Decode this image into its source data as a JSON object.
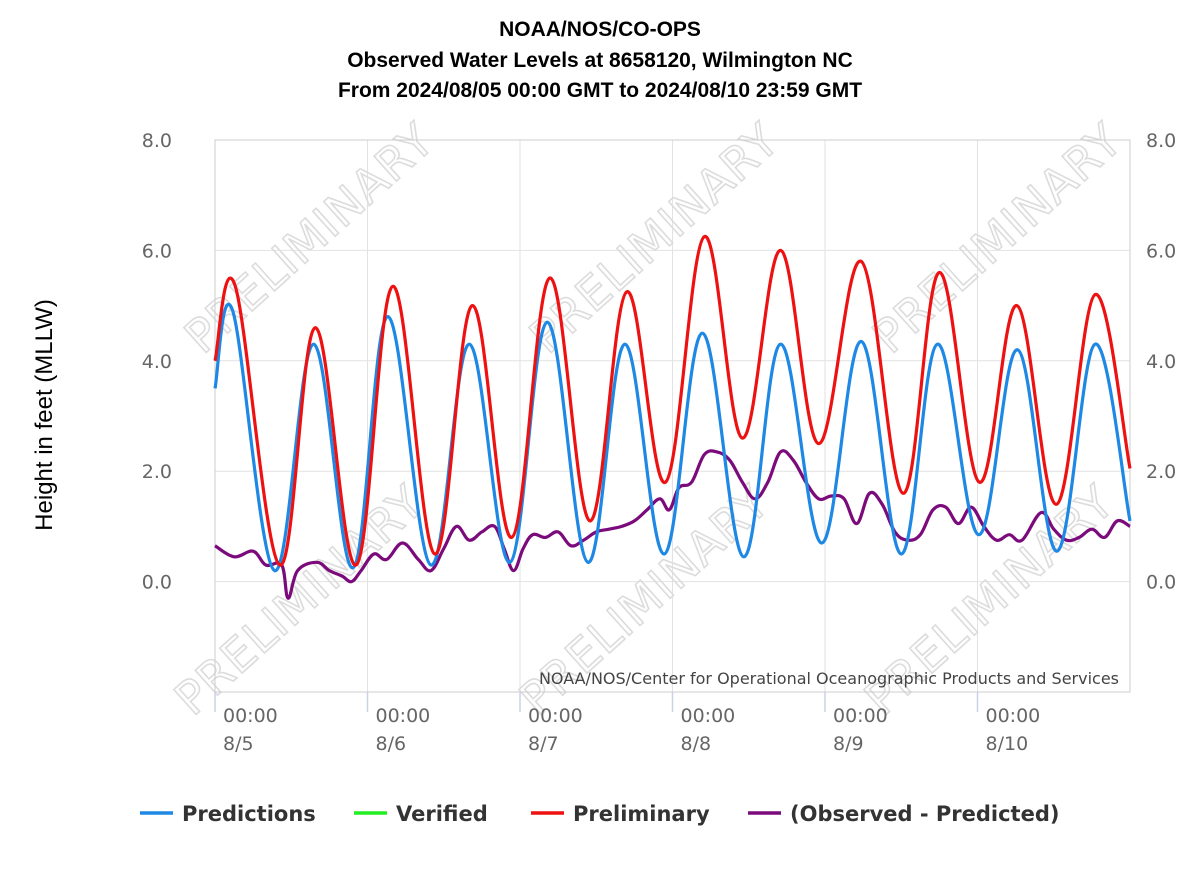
{
  "chart_data": {
    "type": "line",
    "title": [
      "NOAA/NOS/CO-OPS",
      "Observed Water Levels at 8658120, Wilmington NC",
      "From 2024/08/05 00:00 GMT to 2024/08/10 23:59 GMT"
    ],
    "ylabel": "Height in feet (MLLW)",
    "ylim": [
      -2.0,
      8.0
    ],
    "y_ticks": [
      "8.0",
      "6.0",
      "4.0",
      "2.0",
      "0.0"
    ],
    "y_tick_values": [
      8,
      6,
      4,
      2,
      0
    ],
    "xlim_hours": [
      0,
      144
    ],
    "x_ticks": [
      {
        "hour": 0,
        "time": "00:00",
        "date": "8/5"
      },
      {
        "hour": 24,
        "time": "00:00",
        "date": "8/6"
      },
      {
        "hour": 48,
        "time": "00:00",
        "date": "8/7"
      },
      {
        "hour": 72,
        "time": "00:00",
        "date": "8/8"
      },
      {
        "hour": 96,
        "time": "00:00",
        "date": "8/9"
      },
      {
        "hour": 120,
        "time": "00:00",
        "date": "8/10"
      }
    ],
    "grid": true,
    "credit": "NOAA/NOS/Center for Operational Oceanographic Products and Services",
    "watermark": "PRELIMINARY",
    "legend_position": "bottom",
    "series": [
      {
        "name": "Predictions",
        "color": "#1e88e5",
        "points": [
          [
            0,
            3.5
          ],
          [
            2.8,
            4.9
          ],
          [
            9.4,
            0.2
          ],
          [
            15.5,
            4.3
          ],
          [
            21.7,
            0.25
          ],
          [
            27.2,
            4.8
          ],
          [
            34,
            0.3
          ],
          [
            40,
            4.3
          ],
          [
            46.4,
            0.35
          ],
          [
            52.3,
            4.7
          ],
          [
            58.7,
            0.35
          ],
          [
            64.5,
            4.3
          ],
          [
            70.7,
            0.5
          ],
          [
            76.7,
            4.5
          ],
          [
            83.2,
            0.45
          ],
          [
            89,
            4.3
          ],
          [
            95.5,
            0.7
          ],
          [
            101.7,
            4.35
          ],
          [
            108,
            0.5
          ],
          [
            113.7,
            4.3
          ],
          [
            120.2,
            0.85
          ],
          [
            126.3,
            4.2
          ],
          [
            132.5,
            0.55
          ],
          [
            138.5,
            4.3
          ],
          [
            144,
            1.1
          ]
        ]
      },
      {
        "name": "Verified",
        "color": "#22ee22",
        "points": []
      },
      {
        "name": "Preliminary",
        "color": "#ee1111",
        "points": [
          [
            0,
            4.0
          ],
          [
            3.2,
            5.35
          ],
          [
            10.2,
            0.3
          ],
          [
            15.8,
            4.6
          ],
          [
            22.2,
            0.3
          ],
          [
            28,
            5.35
          ],
          [
            34.6,
            0.5
          ],
          [
            40.5,
            5.0
          ],
          [
            46.7,
            0.8
          ],
          [
            52.7,
            5.5
          ],
          [
            59,
            1.1
          ],
          [
            64.8,
            5.25
          ],
          [
            70.9,
            1.8
          ],
          [
            77,
            6.25
          ],
          [
            83,
            2.6
          ],
          [
            89,
            6.0
          ],
          [
            95,
            2.5
          ],
          [
            101.7,
            5.8
          ],
          [
            108.3,
            1.6
          ],
          [
            114,
            5.6
          ],
          [
            120.3,
            1.8
          ],
          [
            126.2,
            5.0
          ],
          [
            132.4,
            1.4
          ],
          [
            138.5,
            5.2
          ],
          [
            144,
            2.05
          ]
        ]
      },
      {
        "name": "(Observed - Predicted)",
        "color": "#7b0a7b",
        "points": [
          [
            0,
            0.65
          ],
          [
            3,
            0.45
          ],
          [
            6,
            0.55
          ],
          [
            8,
            0.3
          ],
          [
            10.5,
            0.3
          ],
          [
            11.5,
            -0.3
          ],
          [
            13,
            0.2
          ],
          [
            16,
            0.35
          ],
          [
            18,
            0.2
          ],
          [
            20,
            0.1
          ],
          [
            21.5,
            0.0
          ],
          [
            23,
            0.2
          ],
          [
            25,
            0.5
          ],
          [
            27,
            0.4
          ],
          [
            29.5,
            0.7
          ],
          [
            32,
            0.4
          ],
          [
            34,
            0.2
          ],
          [
            36,
            0.6
          ],
          [
            38,
            1.0
          ],
          [
            40,
            0.75
          ],
          [
            42,
            0.9
          ],
          [
            44,
            1.0
          ],
          [
            45.5,
            0.6
          ],
          [
            47,
            0.2
          ],
          [
            48.5,
            0.6
          ],
          [
            50,
            0.85
          ],
          [
            52,
            0.8
          ],
          [
            54,
            0.9
          ],
          [
            56,
            0.65
          ],
          [
            58,
            0.75
          ],
          [
            60,
            0.9
          ],
          [
            62,
            0.95
          ],
          [
            64,
            1.0
          ],
          [
            66,
            1.1
          ],
          [
            68,
            1.3
          ],
          [
            70,
            1.5
          ],
          [
            71.5,
            1.3
          ],
          [
            73,
            1.7
          ],
          [
            75,
            1.8
          ],
          [
            77,
            2.3
          ],
          [
            79,
            2.35
          ],
          [
            81,
            2.2
          ],
          [
            83,
            1.8
          ],
          [
            85,
            1.5
          ],
          [
            87,
            1.8
          ],
          [
            89,
            2.35
          ],
          [
            91,
            2.2
          ],
          [
            93,
            1.8
          ],
          [
            95,
            1.5
          ],
          [
            97,
            1.55
          ],
          [
            99,
            1.5
          ],
          [
            101,
            1.05
          ],
          [
            103,
            1.6
          ],
          [
            105,
            1.4
          ],
          [
            107,
            0.9
          ],
          [
            109,
            0.75
          ],
          [
            111,
            0.85
          ],
          [
            113,
            1.3
          ],
          [
            115,
            1.35
          ],
          [
            117,
            1.05
          ],
          [
            119,
            1.35
          ],
          [
            121,
            1.0
          ],
          [
            123,
            0.75
          ],
          [
            125,
            0.85
          ],
          [
            127,
            0.75
          ],
          [
            130,
            1.25
          ],
          [
            132,
            0.95
          ],
          [
            134,
            0.75
          ],
          [
            136,
            0.8
          ],
          [
            138,
            0.95
          ],
          [
            140,
            0.8
          ],
          [
            142,
            1.1
          ],
          [
            144,
            1.0
          ]
        ]
      }
    ]
  }
}
